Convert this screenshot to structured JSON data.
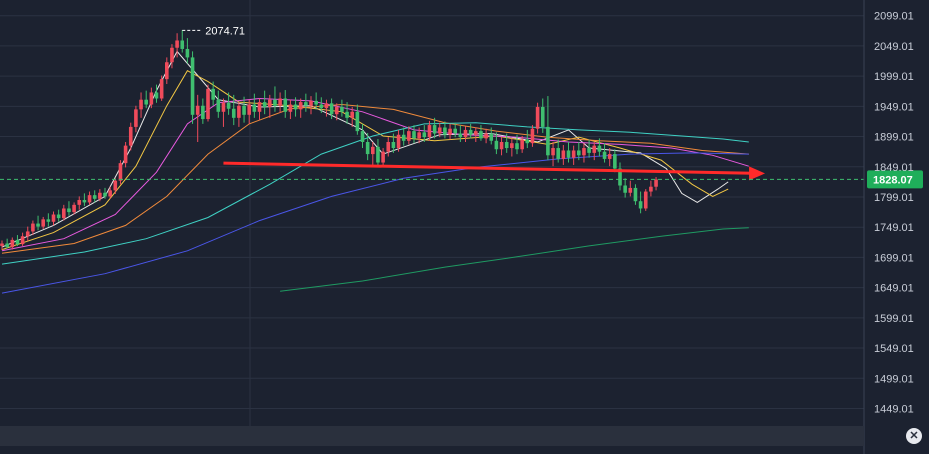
{
  "chart_data": {
    "type": "candlestick",
    "y_axis": {
      "position": "right",
      "ticks": [
        "2099.01",
        "2049.01",
        "1999.01",
        "1949.01",
        "1899.01",
        "1849.01",
        "1799.01",
        "1749.01",
        "1699.01",
        "1649.01",
        "1599.01",
        "1549.01",
        "1499.01",
        "1449.01"
      ],
      "range": [
        1420,
        2125
      ]
    },
    "current_price": 1828.07,
    "current_price_label": "1828.07",
    "peak_value": 2074.71,
    "peak_label": "2074.71",
    "trendline": {
      "from_index": 43,
      "from_price": 1855,
      "to_index": 147,
      "to_price": 1838,
      "color": "#ff2a2a"
    },
    "colors": {
      "up": "#ef4b5b",
      "down": "#3fbf6f",
      "badge": "#1fae5a",
      "background": "#1c2230",
      "grid": "#2b3242"
    },
    "candles": [
      {
        "o": 1718,
        "h": 1727,
        "l": 1711,
        "c": 1722
      },
      {
        "o": 1722,
        "h": 1730,
        "l": 1714,
        "c": 1716
      },
      {
        "o": 1716,
        "h": 1732,
        "l": 1712,
        "c": 1728
      },
      {
        "o": 1728,
        "h": 1736,
        "l": 1718,
        "c": 1721
      },
      {
        "o": 1721,
        "h": 1740,
        "l": 1718,
        "c": 1734
      },
      {
        "o": 1734,
        "h": 1750,
        "l": 1726,
        "c": 1742
      },
      {
        "o": 1742,
        "h": 1760,
        "l": 1736,
        "c": 1755
      },
      {
        "o": 1755,
        "h": 1768,
        "l": 1744,
        "c": 1750
      },
      {
        "o": 1750,
        "h": 1766,
        "l": 1746,
        "c": 1762
      },
      {
        "o": 1762,
        "h": 1772,
        "l": 1750,
        "c": 1758
      },
      {
        "o": 1758,
        "h": 1775,
        "l": 1752,
        "c": 1770
      },
      {
        "o": 1770,
        "h": 1778,
        "l": 1758,
        "c": 1764
      },
      {
        "o": 1764,
        "h": 1786,
        "l": 1760,
        "c": 1780
      },
      {
        "o": 1780,
        "h": 1792,
        "l": 1768,
        "c": 1774
      },
      {
        "o": 1774,
        "h": 1790,
        "l": 1770,
        "c": 1786
      },
      {
        "o": 1786,
        "h": 1800,
        "l": 1778,
        "c": 1794
      },
      {
        "o": 1794,
        "h": 1805,
        "l": 1784,
        "c": 1790
      },
      {
        "o": 1790,
        "h": 1808,
        "l": 1786,
        "c": 1802
      },
      {
        "o": 1802,
        "h": 1810,
        "l": 1790,
        "c": 1796
      },
      {
        "o": 1796,
        "h": 1812,
        "l": 1792,
        "c": 1806
      },
      {
        "o": 1806,
        "h": 1814,
        "l": 1796,
        "c": 1800
      },
      {
        "o": 1800,
        "h": 1816,
        "l": 1796,
        "c": 1810
      },
      {
        "o": 1810,
        "h": 1830,
        "l": 1804,
        "c": 1826
      },
      {
        "o": 1826,
        "h": 1860,
        "l": 1820,
        "c": 1855
      },
      {
        "o": 1855,
        "h": 1890,
        "l": 1848,
        "c": 1884
      },
      {
        "o": 1884,
        "h": 1922,
        "l": 1876,
        "c": 1915
      },
      {
        "o": 1915,
        "h": 1950,
        "l": 1906,
        "c": 1944
      },
      {
        "o": 1944,
        "h": 1972,
        "l": 1930,
        "c": 1960
      },
      {
        "o": 1960,
        "h": 1975,
        "l": 1946,
        "c": 1952
      },
      {
        "o": 1952,
        "h": 1980,
        "l": 1946,
        "c": 1972
      },
      {
        "o": 1972,
        "h": 1985,
        "l": 1955,
        "c": 1962
      },
      {
        "o": 1962,
        "h": 2000,
        "l": 1958,
        "c": 1994
      },
      {
        "o": 1994,
        "h": 2030,
        "l": 1986,
        "c": 2022
      },
      {
        "o": 2022,
        "h": 2052,
        "l": 2012,
        "c": 2046
      },
      {
        "o": 2046,
        "h": 2070,
        "l": 2030,
        "c": 2058
      },
      {
        "o": 2058,
        "h": 2075,
        "l": 2038,
        "c": 2044
      },
      {
        "o": 2044,
        "h": 2062,
        "l": 2020,
        "c": 2030
      },
      {
        "o": 2030,
        "h": 2040,
        "l": 1920,
        "c": 1935
      },
      {
        "o": 1935,
        "h": 1968,
        "l": 1890,
        "c": 1950
      },
      {
        "o": 1950,
        "h": 1962,
        "l": 1920,
        "c": 1928
      },
      {
        "o": 1928,
        "h": 1985,
        "l": 1924,
        "c": 1978
      },
      {
        "o": 1978,
        "h": 1990,
        "l": 1950,
        "c": 1960
      },
      {
        "o": 1960,
        "h": 1975,
        "l": 1930,
        "c": 1940
      },
      {
        "o": 1940,
        "h": 1962,
        "l": 1915,
        "c": 1955
      },
      {
        "o": 1955,
        "h": 1972,
        "l": 1935,
        "c": 1945
      },
      {
        "o": 1945,
        "h": 1968,
        "l": 1918,
        "c": 1930
      },
      {
        "o": 1930,
        "h": 1956,
        "l": 1915,
        "c": 1950
      },
      {
        "o": 1950,
        "h": 1965,
        "l": 1922,
        "c": 1935
      },
      {
        "o": 1935,
        "h": 1960,
        "l": 1920,
        "c": 1952
      },
      {
        "o": 1952,
        "h": 1970,
        "l": 1930,
        "c": 1940
      },
      {
        "o": 1940,
        "h": 1962,
        "l": 1926,
        "c": 1956
      },
      {
        "o": 1956,
        "h": 1975,
        "l": 1936,
        "c": 1948
      },
      {
        "o": 1948,
        "h": 1968,
        "l": 1930,
        "c": 1960
      },
      {
        "o": 1960,
        "h": 1982,
        "l": 1940,
        "c": 1950
      },
      {
        "o": 1950,
        "h": 1972,
        "l": 1938,
        "c": 1962
      },
      {
        "o": 1962,
        "h": 1976,
        "l": 1930,
        "c": 1940
      },
      {
        "o": 1940,
        "h": 1960,
        "l": 1928,
        "c": 1952
      },
      {
        "o": 1952,
        "h": 1964,
        "l": 1932,
        "c": 1944
      },
      {
        "o": 1944,
        "h": 1962,
        "l": 1930,
        "c": 1956
      },
      {
        "o": 1956,
        "h": 1970,
        "l": 1940,
        "c": 1950
      },
      {
        "o": 1950,
        "h": 1966,
        "l": 1936,
        "c": 1958
      },
      {
        "o": 1958,
        "h": 1972,
        "l": 1944,
        "c": 1952
      },
      {
        "o": 1952,
        "h": 1964,
        "l": 1938,
        "c": 1946
      },
      {
        "o": 1946,
        "h": 1960,
        "l": 1932,
        "c": 1954
      },
      {
        "o": 1954,
        "h": 1962,
        "l": 1928,
        "c": 1936
      },
      {
        "o": 1936,
        "h": 1954,
        "l": 1926,
        "c": 1948
      },
      {
        "o": 1948,
        "h": 1960,
        "l": 1932,
        "c": 1940
      },
      {
        "o": 1940,
        "h": 1956,
        "l": 1920,
        "c": 1930
      },
      {
        "o": 1930,
        "h": 1948,
        "l": 1915,
        "c": 1940
      },
      {
        "o": 1940,
        "h": 1952,
        "l": 1902,
        "c": 1908
      },
      {
        "o": 1908,
        "h": 1920,
        "l": 1880,
        "c": 1890
      },
      {
        "o": 1890,
        "h": 1905,
        "l": 1860,
        "c": 1870
      },
      {
        "o": 1870,
        "h": 1890,
        "l": 1852,
        "c": 1882
      },
      {
        "o": 1882,
        "h": 1895,
        "l": 1848,
        "c": 1856
      },
      {
        "o": 1856,
        "h": 1880,
        "l": 1850,
        "c": 1874
      },
      {
        "o": 1874,
        "h": 1898,
        "l": 1866,
        "c": 1890
      },
      {
        "o": 1890,
        "h": 1904,
        "l": 1872,
        "c": 1880
      },
      {
        "o": 1880,
        "h": 1910,
        "l": 1874,
        "c": 1902
      },
      {
        "o": 1902,
        "h": 1914,
        "l": 1884,
        "c": 1892
      },
      {
        "o": 1892,
        "h": 1916,
        "l": 1886,
        "c": 1908
      },
      {
        "o": 1908,
        "h": 1918,
        "l": 1888,
        "c": 1896
      },
      {
        "o": 1896,
        "h": 1914,
        "l": 1888,
        "c": 1906
      },
      {
        "o": 1906,
        "h": 1918,
        "l": 1890,
        "c": 1898
      },
      {
        "o": 1898,
        "h": 1925,
        "l": 1892,
        "c": 1918
      },
      {
        "o": 1918,
        "h": 1930,
        "l": 1896,
        "c": 1904
      },
      {
        "o": 1904,
        "h": 1922,
        "l": 1898,
        "c": 1914
      },
      {
        "o": 1914,
        "h": 1924,
        "l": 1896,
        "c": 1902
      },
      {
        "o": 1902,
        "h": 1920,
        "l": 1894,
        "c": 1912
      },
      {
        "o": 1912,
        "h": 1922,
        "l": 1898,
        "c": 1904
      },
      {
        "o": 1904,
        "h": 1918,
        "l": 1890,
        "c": 1898
      },
      {
        "o": 1898,
        "h": 1916,
        "l": 1890,
        "c": 1910
      },
      {
        "o": 1910,
        "h": 1920,
        "l": 1896,
        "c": 1902
      },
      {
        "o": 1902,
        "h": 1914,
        "l": 1890,
        "c": 1908
      },
      {
        "o": 1908,
        "h": 1918,
        "l": 1892,
        "c": 1896
      },
      {
        "o": 1896,
        "h": 1912,
        "l": 1888,
        "c": 1904
      },
      {
        "o": 1904,
        "h": 1914,
        "l": 1886,
        "c": 1892
      },
      {
        "o": 1892,
        "h": 1906,
        "l": 1870,
        "c": 1878
      },
      {
        "o": 1878,
        "h": 1898,
        "l": 1868,
        "c": 1890
      },
      {
        "o": 1890,
        "h": 1904,
        "l": 1872,
        "c": 1880
      },
      {
        "o": 1880,
        "h": 1896,
        "l": 1866,
        "c": 1888
      },
      {
        "o": 1888,
        "h": 1902,
        "l": 1870,
        "c": 1878
      },
      {
        "o": 1878,
        "h": 1900,
        "l": 1872,
        "c": 1894
      },
      {
        "o": 1894,
        "h": 1910,
        "l": 1880,
        "c": 1888
      },
      {
        "o": 1888,
        "h": 1918,
        "l": 1882,
        "c": 1912
      },
      {
        "o": 1912,
        "h": 1955,
        "l": 1904,
        "c": 1948
      },
      {
        "o": 1948,
        "h": 1962,
        "l": 1905,
        "c": 1915
      },
      {
        "o": 1915,
        "h": 1966,
        "l": 1860,
        "c": 1868
      },
      {
        "o": 1868,
        "h": 1890,
        "l": 1850,
        "c": 1880
      },
      {
        "o": 1880,
        "h": 1894,
        "l": 1856,
        "c": 1862
      },
      {
        "o": 1862,
        "h": 1885,
        "l": 1852,
        "c": 1876
      },
      {
        "o": 1876,
        "h": 1890,
        "l": 1856,
        "c": 1864
      },
      {
        "o": 1864,
        "h": 1884,
        "l": 1852,
        "c": 1876
      },
      {
        "o": 1876,
        "h": 1890,
        "l": 1860,
        "c": 1868
      },
      {
        "o": 1868,
        "h": 1888,
        "l": 1856,
        "c": 1880
      },
      {
        "o": 1880,
        "h": 1894,
        "l": 1864,
        "c": 1872
      },
      {
        "o": 1872,
        "h": 1890,
        "l": 1860,
        "c": 1884
      },
      {
        "o": 1884,
        "h": 1896,
        "l": 1866,
        "c": 1874
      },
      {
        "o": 1874,
        "h": 1888,
        "l": 1856,
        "c": 1862
      },
      {
        "o": 1862,
        "h": 1880,
        "l": 1850,
        "c": 1870
      },
      {
        "o": 1870,
        "h": 1878,
        "l": 1840,
        "c": 1846
      },
      {
        "o": 1846,
        "h": 1856,
        "l": 1810,
        "c": 1818
      },
      {
        "o": 1818,
        "h": 1830,
        "l": 1798,
        "c": 1806
      },
      {
        "o": 1806,
        "h": 1826,
        "l": 1800,
        "c": 1814
      },
      {
        "o": 1814,
        "h": 1820,
        "l": 1786,
        "c": 1792
      },
      {
        "o": 1792,
        "h": 1808,
        "l": 1772,
        "c": 1780
      },
      {
        "o": 1780,
        "h": 1812,
        "l": 1776,
        "c": 1808
      },
      {
        "o": 1808,
        "h": 1826,
        "l": 1800,
        "c": 1816
      },
      {
        "o": 1816,
        "h": 1832,
        "l": 1810,
        "c": 1828
      }
    ],
    "moving_averages": [
      {
        "color": "#e9e9e9",
        "points": [
          [
            0,
            1716
          ],
          [
            10,
            1752
          ],
          [
            20,
            1800
          ],
          [
            25,
            1880
          ],
          [
            30,
            1975
          ],
          [
            34,
            2040
          ],
          [
            38,
            2000
          ],
          [
            42,
            1960
          ],
          [
            50,
            1948
          ],
          [
            60,
            1950
          ],
          [
            70,
            1910
          ],
          [
            74,
            1870
          ],
          [
            85,
            1902
          ],
          [
            95,
            1904
          ],
          [
            104,
            1890
          ],
          [
            110,
            1910
          ],
          [
            114,
            1880
          ],
          [
            124,
            1872
          ],
          [
            129,
            1846
          ],
          [
            132,
            1805
          ],
          [
            135,
            1790
          ],
          [
            139,
            1812
          ],
          [
            141,
            1824
          ]
        ]
      },
      {
        "color": "#f2c744",
        "points": [
          [
            0,
            1712
          ],
          [
            10,
            1740
          ],
          [
            20,
            1786
          ],
          [
            26,
            1850
          ],
          [
            32,
            1950
          ],
          [
            36,
            2008
          ],
          [
            40,
            1990
          ],
          [
            46,
            1956
          ],
          [
            56,
            1950
          ],
          [
            66,
            1940
          ],
          [
            74,
            1900
          ],
          [
            84,
            1892
          ],
          [
            96,
            1900
          ],
          [
            106,
            1886
          ],
          [
            112,
            1898
          ],
          [
            120,
            1880
          ],
          [
            128,
            1860
          ],
          [
            134,
            1820
          ],
          [
            138,
            1800
          ],
          [
            141,
            1812
          ]
        ]
      },
      {
        "color": "#e85adf",
        "points": [
          [
            0,
            1710
          ],
          [
            12,
            1730
          ],
          [
            22,
            1770
          ],
          [
            30,
            1840
          ],
          [
            36,
            1920
          ],
          [
            42,
            1955
          ],
          [
            50,
            1962
          ],
          [
            60,
            1958
          ],
          [
            70,
            1940
          ],
          [
            80,
            1910
          ],
          [
            90,
            1902
          ],
          [
            100,
            1898
          ],
          [
            110,
            1890
          ],
          [
            120,
            1886
          ],
          [
            130,
            1880
          ],
          [
            138,
            1868
          ],
          [
            145,
            1850
          ]
        ]
      },
      {
        "color": "#f08a3b",
        "points": [
          [
            0,
            1706
          ],
          [
            14,
            1722
          ],
          [
            24,
            1752
          ],
          [
            32,
            1800
          ],
          [
            40,
            1870
          ],
          [
            48,
            1920
          ],
          [
            56,
            1945
          ],
          [
            66,
            1952
          ],
          [
            76,
            1944
          ],
          [
            86,
            1922
          ],
          [
            96,
            1908
          ],
          [
            106,
            1898
          ],
          [
            116,
            1892
          ],
          [
            126,
            1888
          ],
          [
            136,
            1876
          ],
          [
            145,
            1870
          ]
        ]
      },
      {
        "color": "#3fd1c4",
        "points": [
          [
            0,
            1688
          ],
          [
            16,
            1708
          ],
          [
            28,
            1730
          ],
          [
            40,
            1765
          ],
          [
            52,
            1820
          ],
          [
            62,
            1870
          ],
          [
            72,
            1900
          ],
          [
            82,
            1920
          ],
          [
            92,
            1922
          ],
          [
            102,
            1915
          ],
          [
            112,
            1910
          ],
          [
            122,
            1906
          ],
          [
            132,
            1900
          ],
          [
            140,
            1895
          ],
          [
            145,
            1890
          ]
        ]
      },
      {
        "color": "#4a56e8",
        "points": [
          [
            0,
            1640
          ],
          [
            20,
            1672
          ],
          [
            36,
            1710
          ],
          [
            50,
            1760
          ],
          [
            64,
            1800
          ],
          [
            78,
            1830
          ],
          [
            92,
            1848
          ],
          [
            108,
            1862
          ],
          [
            122,
            1870
          ],
          [
            134,
            1872
          ],
          [
            145,
            1870
          ]
        ]
      },
      {
        "color": "#1f9a62",
        "points": [
          [
            54,
            1643
          ],
          [
            70,
            1660
          ],
          [
            86,
            1683
          ],
          [
            100,
            1700
          ],
          [
            114,
            1718
          ],
          [
            128,
            1734
          ],
          [
            140,
            1746
          ],
          [
            145,
            1748
          ]
        ]
      }
    ]
  },
  "watermark": "",
  "zoom_button_symbol": "✕"
}
